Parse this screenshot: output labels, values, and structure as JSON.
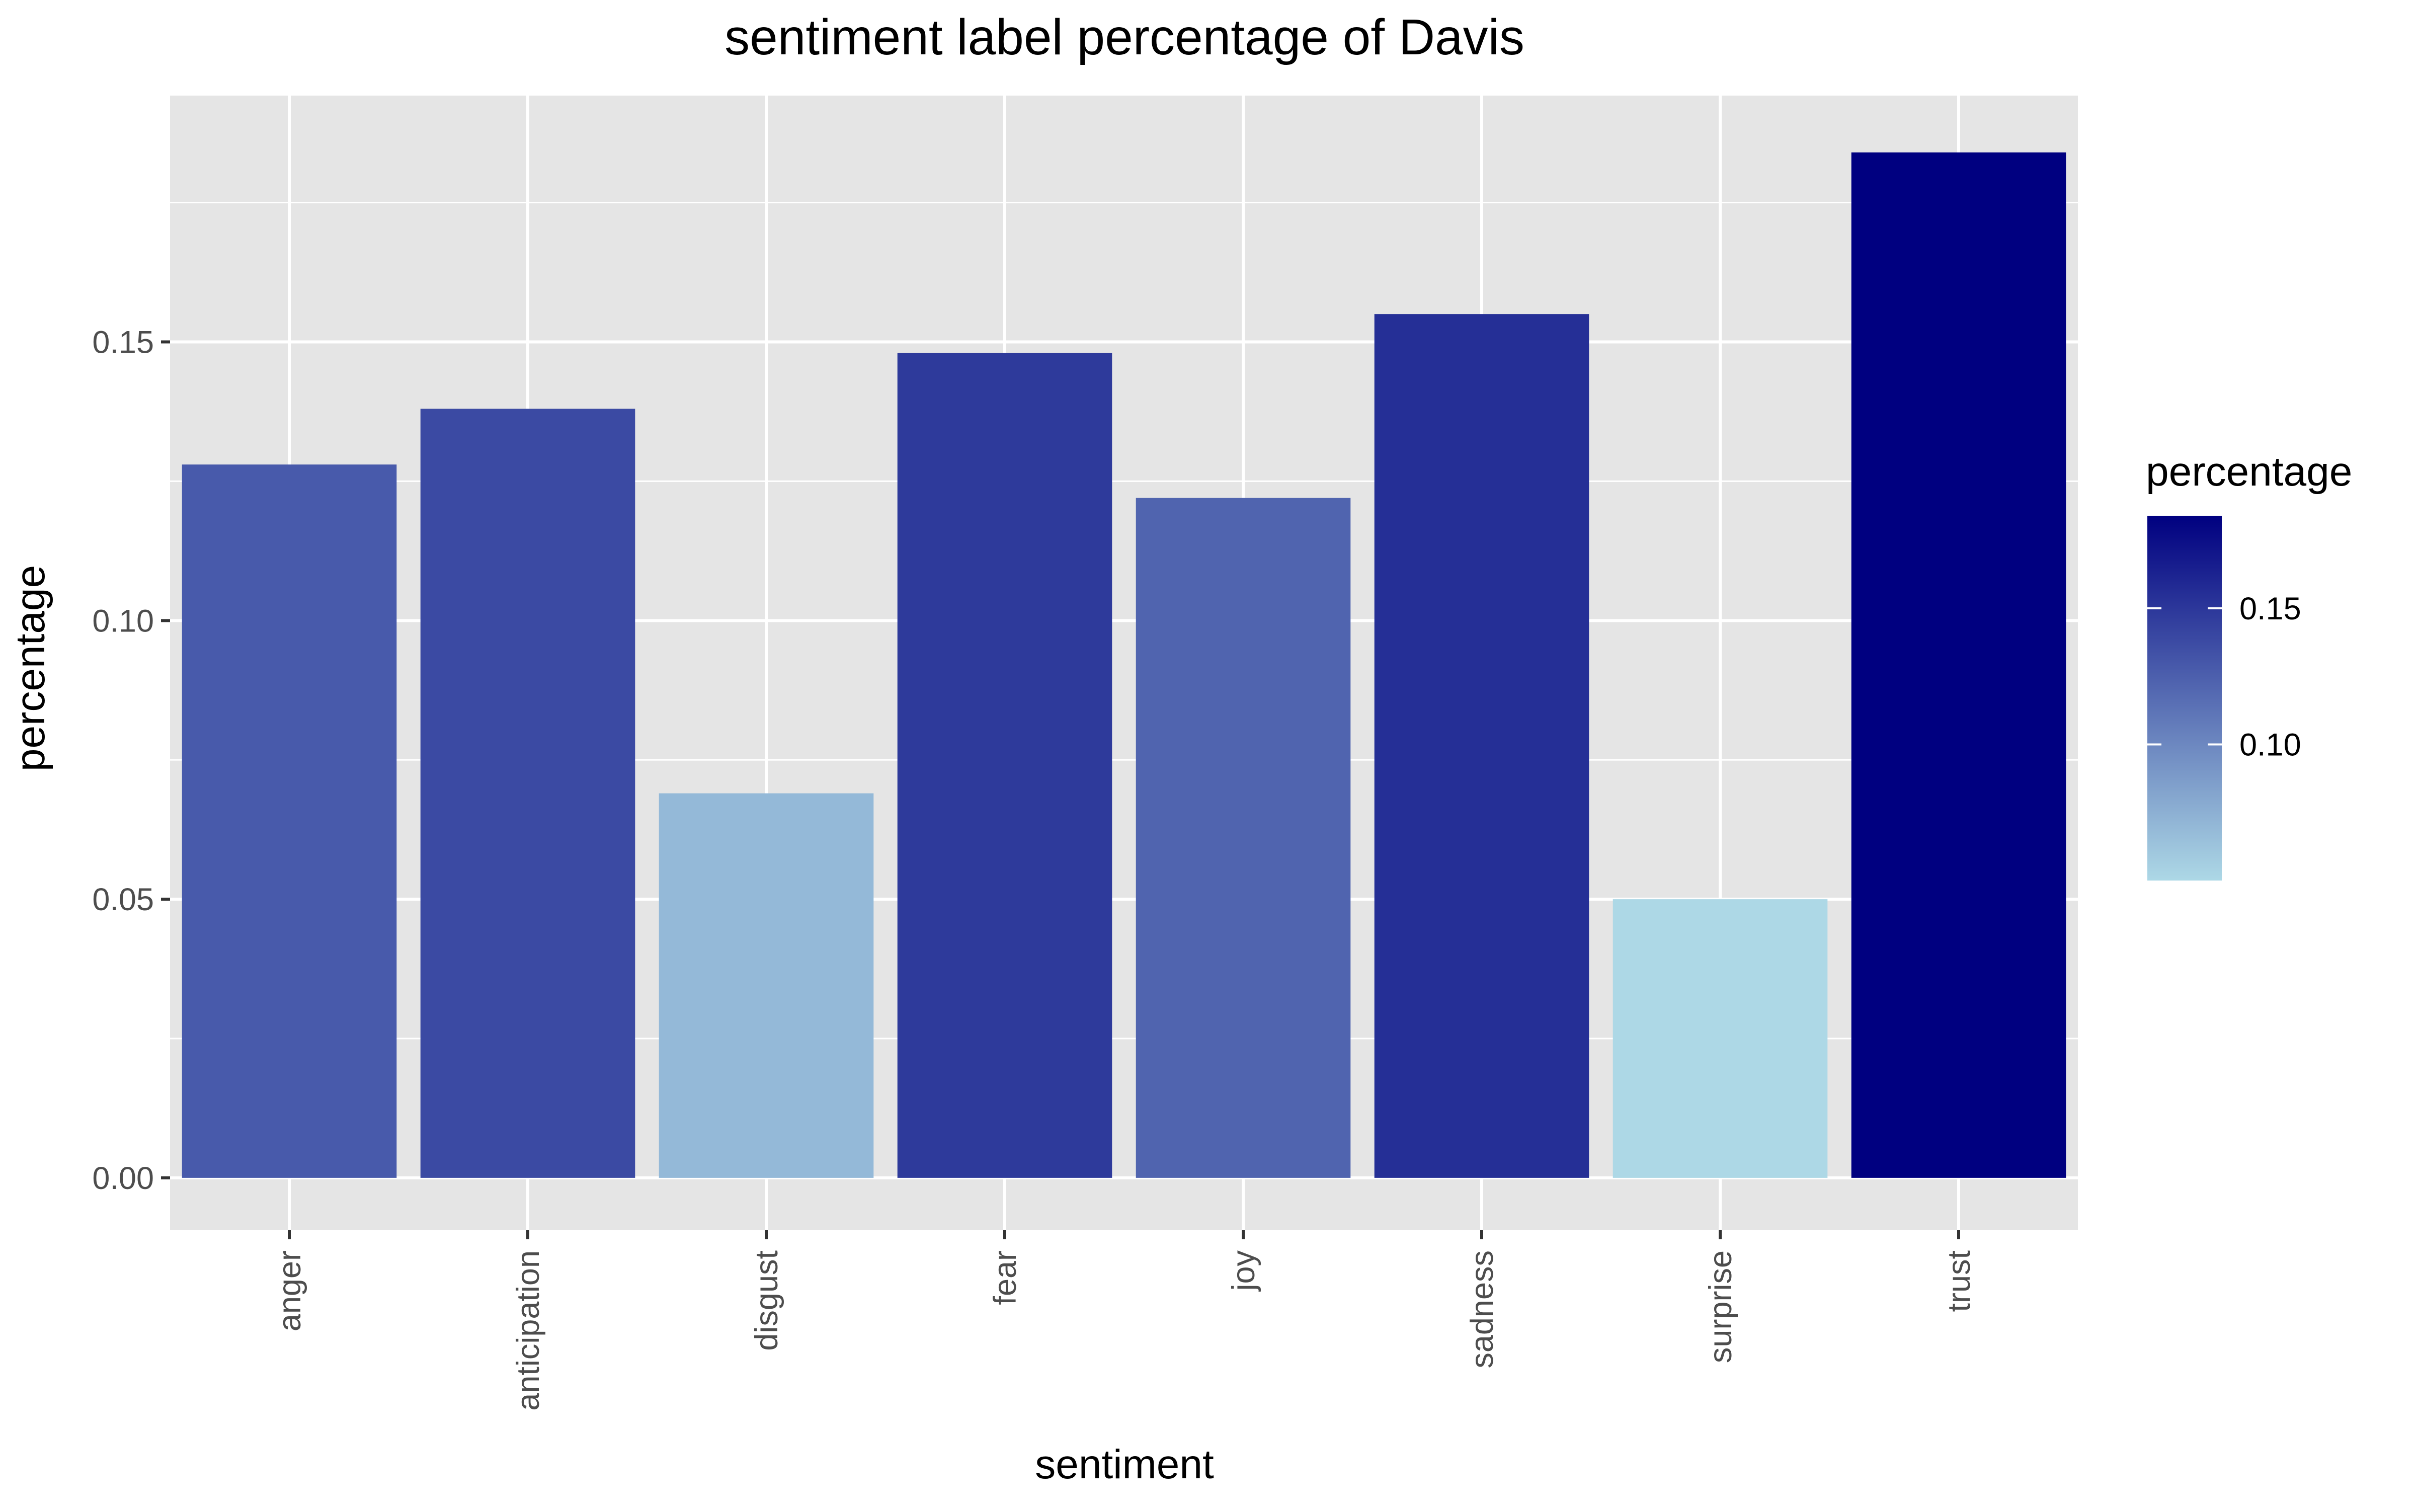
{
  "chart_data": {
    "type": "bar",
    "title": "sentiment label percentage of Davis",
    "xlabel": "sentiment",
    "ylabel": "percentage",
    "categories": [
      "anger",
      "anticipation",
      "disgust",
      "fear",
      "joy",
      "sadness",
      "surprise",
      "trust"
    ],
    "values": [
      0.128,
      0.138,
      0.069,
      0.148,
      0.122,
      0.155,
      0.05,
      0.184
    ],
    "ylim": [
      -0.0094,
      0.1942
    ],
    "yticks": [
      0.0,
      0.05,
      0.1,
      0.15
    ],
    "ytick_labels": [
      "0.00",
      "0.05",
      "0.10",
      "0.15"
    ],
    "grid": true,
    "panel_background": "#e5e5e5",
    "grid_color": "#ffffff",
    "legend": {
      "title": "percentage",
      "position": "right",
      "type": "colorbar",
      "range": [
        0.05,
        0.184
      ],
      "ticks": [
        0.1,
        0.15
      ],
      "tick_labels": [
        "0.10",
        "0.15"
      ],
      "low_color": "#add8e6",
      "high_color": "#000080"
    }
  }
}
